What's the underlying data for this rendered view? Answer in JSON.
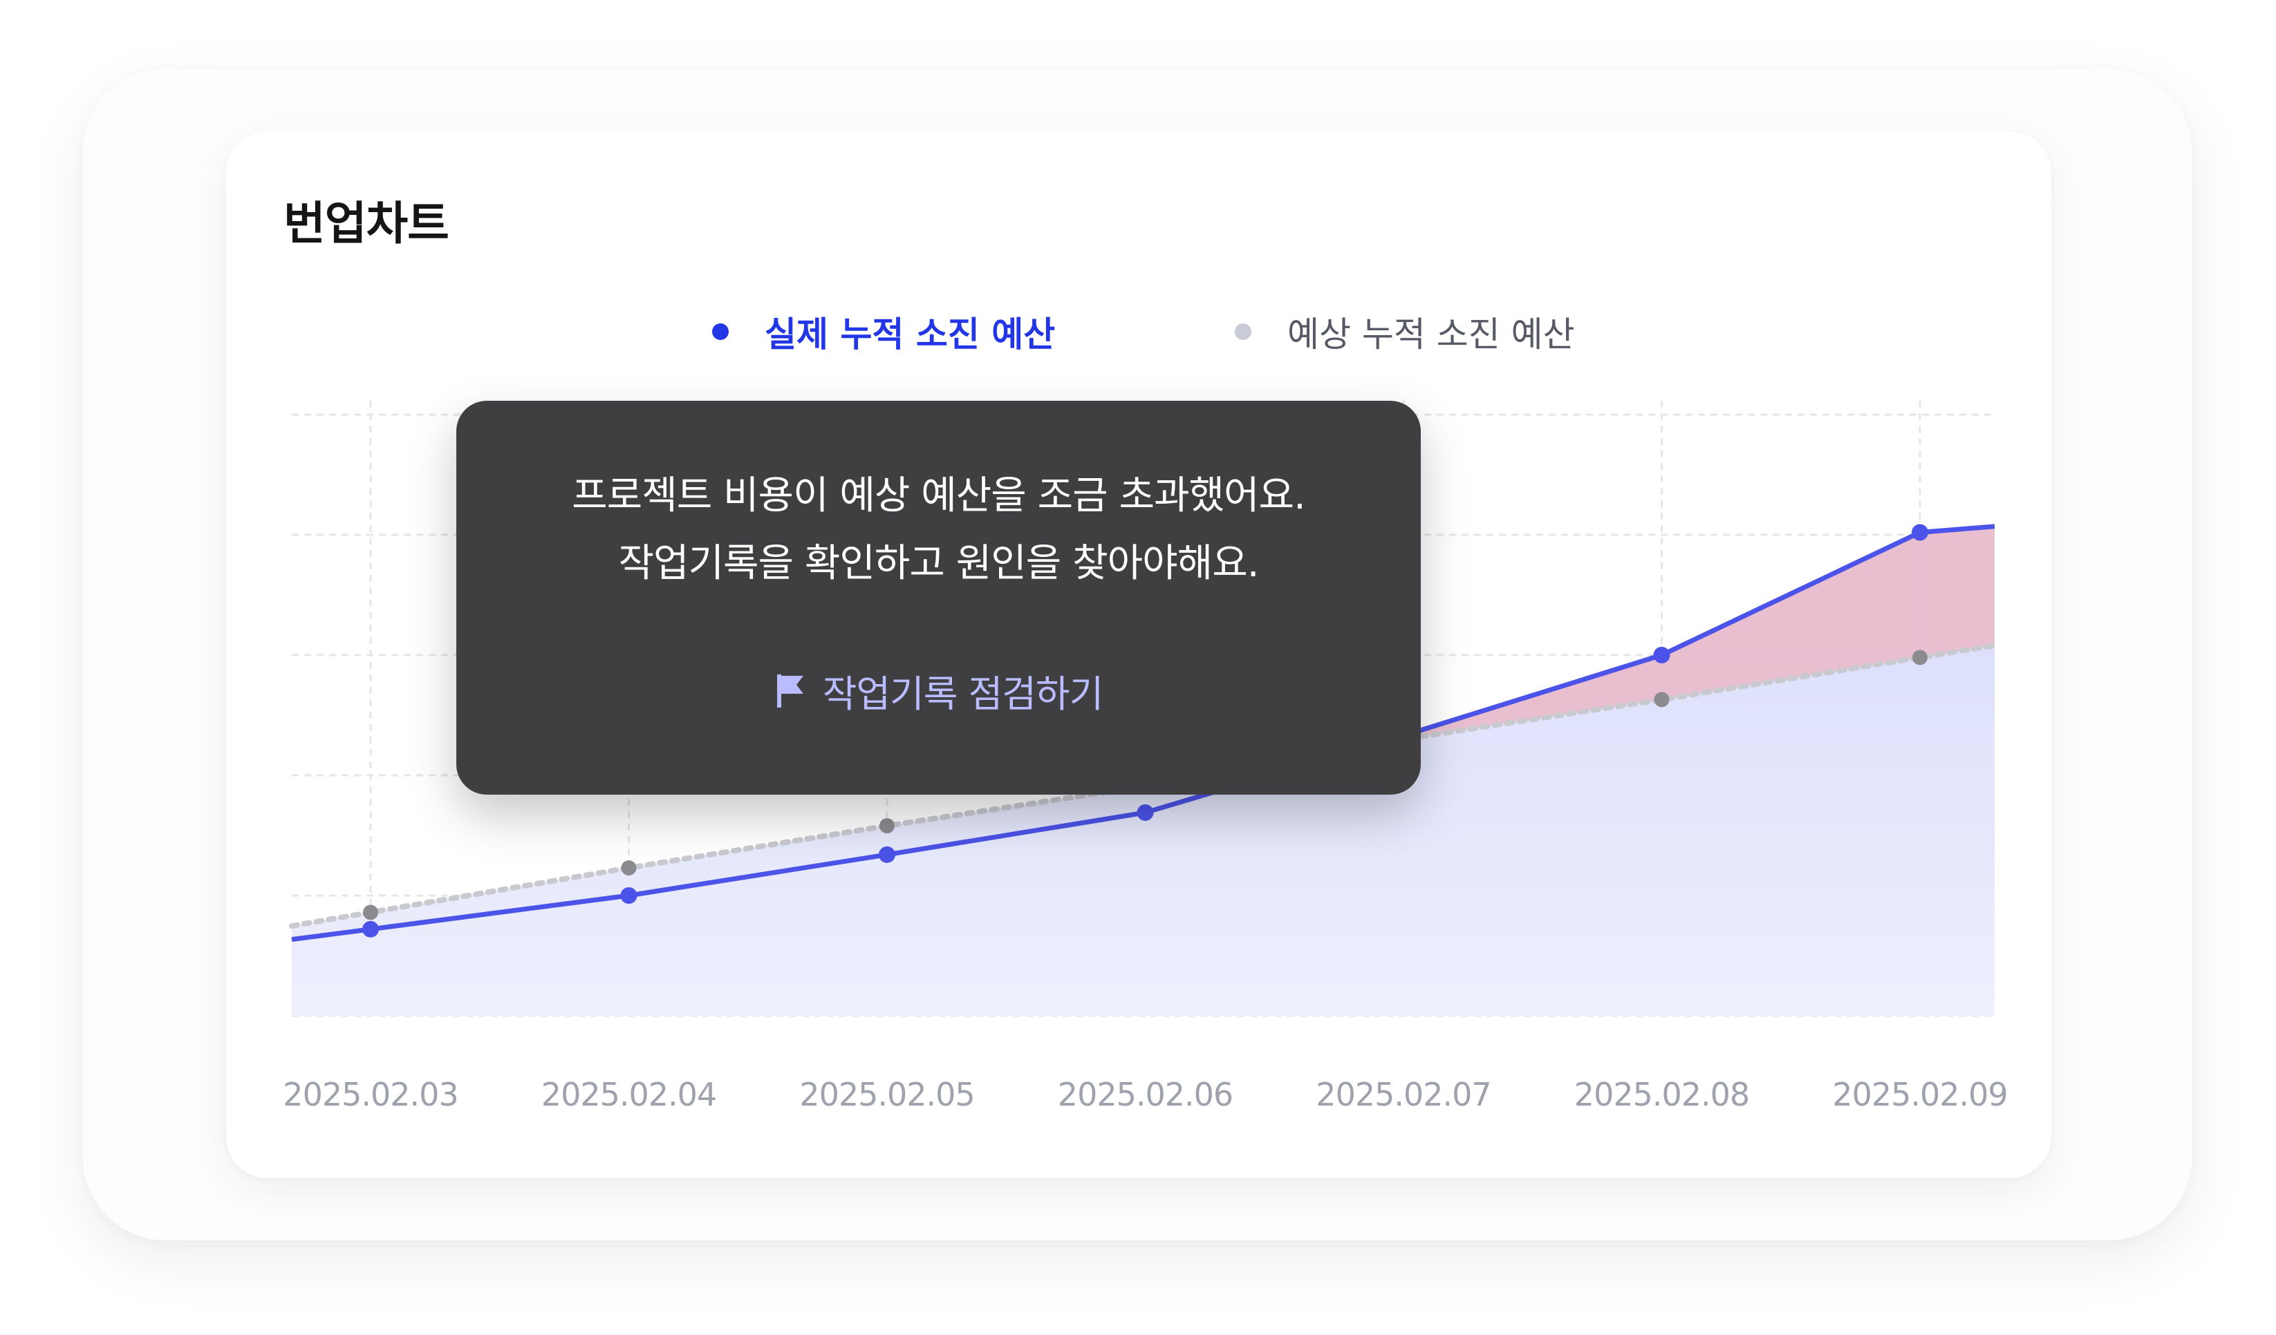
{
  "card": {
    "title": "번업차트"
  },
  "colors": {
    "actual": "#2336e6",
    "actual_line": "#4b53e8",
    "forecast": "#c9ccd8",
    "forecast_point": "#8a8a8f",
    "over_budget_fill": "#e8bccd",
    "area_fill": "#e4e6fc",
    "tooltip_bg": "#3f3f41",
    "action_text": "#b9bcff"
  },
  "tooltip": {
    "line1": "프로젝트 비용이 예상 예산을 조금 초과했어요.",
    "line2": "작업기록을 확인하고 원인을 찾아야해요.",
    "action_icon": "flag-icon",
    "action_label": "작업기록 점검하기"
  },
  "chart_data": {
    "type": "area",
    "title": "번업차트",
    "xlabel": "",
    "ylabel": "",
    "x": [
      "2025.02.03",
      "2025.02.04",
      "2025.02.05",
      "2025.02.06",
      "2025.02.07",
      "2025.02.08",
      "2025.02.09"
    ],
    "ylim": [
      0,
      5
    ],
    "grid": true,
    "legend_position": "top-center",
    "series": [
      {
        "name": "실제 누적 소진 예산",
        "values": [
          0.72,
          1.0,
          1.34,
          1.69,
          2.33,
          3.0,
          4.02
        ],
        "end_value": 4.07,
        "style": "solid"
      },
      {
        "name": "예상 누적 소진 예산",
        "values": [
          0.86,
          1.23,
          1.58,
          1.91,
          2.3,
          2.63,
          2.98
        ],
        "end_value": 3.08,
        "style": "dotted"
      }
    ]
  }
}
